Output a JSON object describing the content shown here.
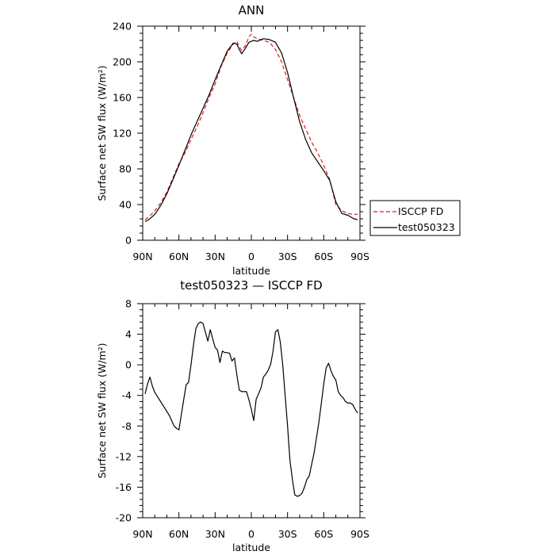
{
  "chart_data": [
    {
      "type": "line",
      "title": "ANN",
      "xlabel": "latitude",
      "ylabel": "Surface net SW flux (W/m²)",
      "xlim": [
        90,
        -90
      ],
      "ylim": [
        0,
        240
      ],
      "x_ticks": [
        90,
        60,
        30,
        0,
        -30,
        -60,
        -90
      ],
      "x_tick_labels": [
        "90N",
        "60N",
        "30N",
        "0",
        "30S",
        "60S",
        "90S"
      ],
      "y_ticks": [
        0,
        40,
        80,
        120,
        160,
        200,
        240
      ],
      "y_tick_labels": [
        "0",
        "40",
        "80",
        "120",
        "160",
        "200",
        "240"
      ],
      "grid": false,
      "legend_position": "right",
      "series": [
        {
          "name": "ISCCP FD",
          "color": "#e41a1c",
          "dash": "dashed",
          "x": [
            88,
            85,
            80,
            75,
            70,
            65,
            60,
            55,
            50,
            45,
            40,
            35,
            30,
            25,
            20,
            15,
            12,
            10,
            8,
            5,
            2,
            0,
            -2,
            -5,
            -10,
            -15,
            -20,
            -25,
            -30,
            -35,
            -40,
            -45,
            -50,
            -55,
            -60,
            -65,
            -70,
            -75,
            -80,
            -85,
            -88
          ],
          "y": [
            23,
            26,
            33,
            42,
            54,
            70,
            86,
            98,
            113,
            127,
            143,
            160,
            175,
            195,
            210,
            220,
            223,
            217,
            213,
            218,
            228,
            231,
            228,
            226,
            224,
            222,
            214,
            200,
            180,
            160,
            140,
            125,
            110,
            98,
            84,
            68,
            40,
            33,
            30,
            29,
            29
          ]
        },
        {
          "name": "test050323",
          "color": "#000000",
          "dash": "solid",
          "x": [
            88,
            85,
            80,
            75,
            70,
            65,
            60,
            55,
            50,
            45,
            40,
            35,
            30,
            25,
            20,
            15,
            12,
            10,
            8,
            5,
            2,
            0,
            -2,
            -5,
            -10,
            -15,
            -20,
            -25,
            -30,
            -35,
            -40,
            -45,
            -50,
            -55,
            -60,
            -65,
            -70,
            -75,
            -80,
            -85,
            -88
          ],
          "y": [
            21,
            23,
            29,
            39,
            52,
            68,
            84,
            101,
            118,
            133,
            148,
            163,
            180,
            196,
            212,
            221,
            220,
            214,
            209,
            215,
            222,
            223,
            224,
            223,
            226,
            225,
            222,
            210,
            188,
            160,
            133,
            113,
            98,
            88,
            78,
            67,
            43,
            30,
            28,
            24,
            23
          ]
        }
      ]
    },
    {
      "type": "line",
      "title": "test050323 — ISCCP FD",
      "xlabel": "latitude",
      "ylabel": "Surface net SW flux (W/m²)",
      "xlim": [
        90,
        -90
      ],
      "ylim": [
        -20,
        8
      ],
      "x_ticks": [
        90,
        60,
        30,
        0,
        -30,
        -60,
        -90
      ],
      "x_tick_labels": [
        "90N",
        "60N",
        "30N",
        "0",
        "30S",
        "60S",
        "90S"
      ],
      "y_ticks": [
        -20,
        -16,
        -12,
        -8,
        -4,
        0,
        4,
        8
      ],
      "y_tick_labels": [
        "-20",
        "-16",
        "-12",
        "-8",
        "-4",
        "0",
        "4",
        "8"
      ],
      "grid": false,
      "series": [
        {
          "color": "#000000",
          "dash": "solid",
          "x": [
            88,
            86,
            84,
            82,
            80,
            78,
            76,
            74,
            72,
            70,
            68,
            66,
            64,
            62,
            60,
            58,
            56,
            54,
            52,
            50,
            48,
            46,
            44,
            42,
            40,
            38,
            36,
            34,
            32,
            30,
            28,
            26,
            24,
            22,
            20,
            18,
            16,
            14,
            12,
            10,
            8,
            6,
            4,
            2,
            0,
            -2,
            -4,
            -6,
            -8,
            -10,
            -12,
            -14,
            -16,
            -18,
            -20,
            -22,
            -24,
            -26,
            -28,
            -30,
            -32,
            -34,
            -36,
            -38,
            -40,
            -42,
            -44,
            -46,
            -48,
            -50,
            -52,
            -54,
            -56,
            -58,
            -60,
            -62,
            -64,
            -66,
            -68,
            -70,
            -72,
            -74,
            -76,
            -78,
            -80,
            -82,
            -84,
            -86,
            -88
          ],
          "y": [
            -3.8,
            -2.5,
            -1.6,
            -2.8,
            -3.6,
            -4.1,
            -4.6,
            -5.1,
            -5.6,
            -6.1,
            -6.6,
            -7.3,
            -8.0,
            -8.3,
            -8.5,
            -6.5,
            -4.5,
            -2.6,
            -2.3,
            0.0,
            2.5,
            4.7,
            5.4,
            5.6,
            5.4,
            4.2,
            3.1,
            4.6,
            3.4,
            2.3,
            1.9,
            0.3,
            1.8,
            1.6,
            1.6,
            1.5,
            0.5,
            0.9,
            -1.3,
            -3.3,
            -3.5,
            -3.5,
            -3.5,
            -4.6,
            -5.8,
            -7.3,
            -4.5,
            -3.8,
            -3.0,
            -1.6,
            -1.2,
            -0.7,
            0.1,
            1.8,
            4.3,
            4.6,
            3.0,
            0.0,
            -4.0,
            -8.0,
            -12.5,
            -15.0,
            -17.0,
            -17.2,
            -17.1,
            -16.8,
            -16.0,
            -15.0,
            -14.5,
            -13.0,
            -11.5,
            -9.5,
            -7.5,
            -5.0,
            -2.5,
            -0.4,
            0.2,
            -0.8,
            -1.5,
            -2.0,
            -3.5,
            -4.0,
            -4.3,
            -4.8,
            -5.0,
            -5.0,
            -5.2,
            -5.8,
            -6.3
          ]
        }
      ]
    }
  ]
}
